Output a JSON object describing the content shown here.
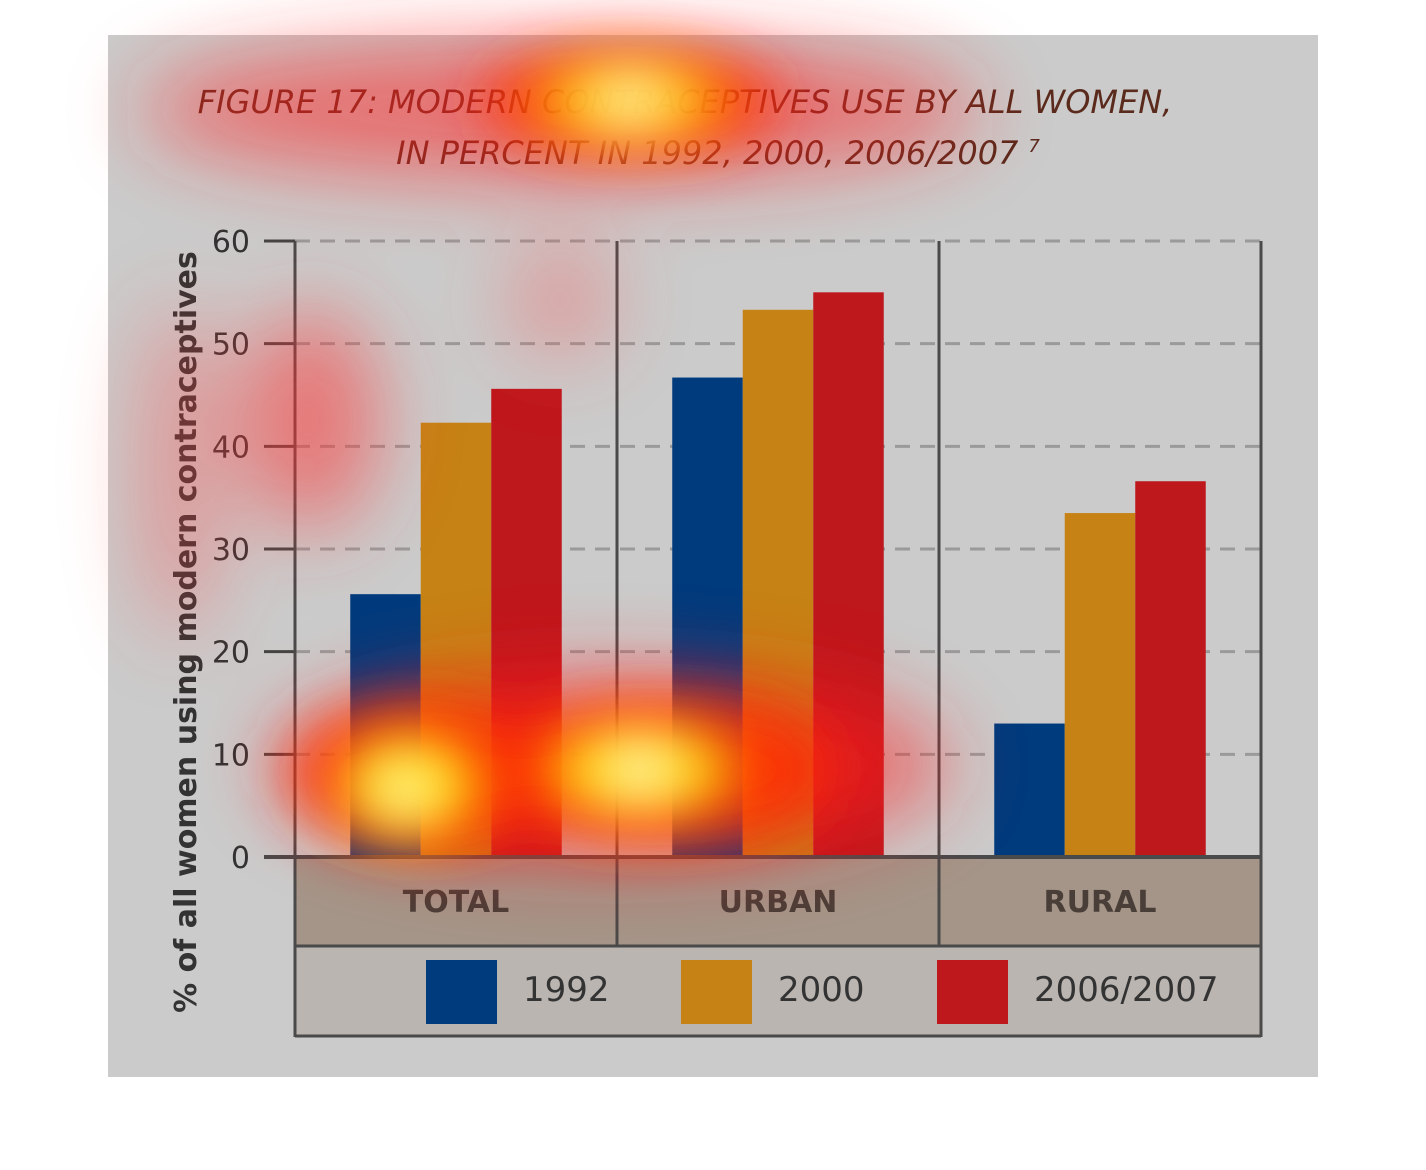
{
  "chart_data": {
    "type": "bar",
    "title_line1": "FIGURE 17: MODERN CONTRACEPTIVES USE BY ALL WOMEN,",
    "title_line2": "IN PERCENT IN 1992, 2000, 2006/2007",
    "title_footnote": "7",
    "ylabel": "% of all women using modern contraceptives",
    "xlabel": "",
    "ylim": [
      0,
      60
    ],
    "yticks": [
      "0",
      "10",
      "20",
      "30",
      "40",
      "50",
      "60"
    ],
    "categories": [
      "TOTAL",
      "URBAN",
      "RURAL"
    ],
    "series": [
      {
        "name": "1992",
        "color": "#003b7d",
        "values": [
          25.6,
          46.7,
          13.0
        ]
      },
      {
        "name": "2000",
        "color": "#c68215",
        "values": [
          42.3,
          53.3,
          33.5
        ]
      },
      {
        "name": "2006/2007",
        "color": "#be171c",
        "values": [
          45.6,
          55.0,
          36.6
        ]
      }
    ],
    "grid": true,
    "legend_position": "bottom",
    "colors": {
      "panel": "#cbcbcb",
      "category_band": "#a49588",
      "legend_band": "#bbb5b1",
      "title": "#5a2a1c",
      "axis_text": "#333333",
      "category_text": "#4a3f38"
    },
    "overlay": "attention heatmap"
  }
}
